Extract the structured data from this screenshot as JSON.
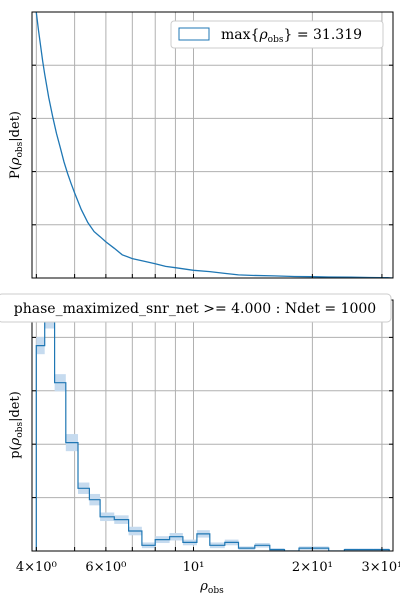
{
  "chart_data": [
    {
      "type": "line",
      "panel": "top",
      "ylabel": "P(ρobs|det)",
      "xscale": "log",
      "xlim": [
        3.9,
        32
      ],
      "grid": true,
      "legend": {
        "placement": "top-right",
        "label": "max{ρobs} = 31.319"
      },
      "x_ticks_major": [
        4,
        10,
        20,
        30
      ],
      "x_ticks_minor": [
        5,
        6,
        7,
        8,
        9
      ],
      "series": [
        {
          "color": "#1f77b4",
          "x": [
            4.0,
            4.05,
            4.1,
            4.15,
            4.2,
            4.3,
            4.4,
            4.5,
            4.6,
            4.7,
            4.8,
            4.9,
            5.0,
            5.2,
            5.4,
            5.6,
            5.8,
            6.0,
            6.3,
            6.6,
            7.0,
            7.5,
            8.0,
            8.5,
            9.0,
            10.0,
            11.0,
            12.0,
            13.0,
            14.0,
            16.0,
            18.0,
            20.0,
            22.0,
            25.0,
            28.0,
            31.0,
            32.0
          ],
          "y": [
            1.03,
            0.96,
            0.9,
            0.84,
            0.79,
            0.7,
            0.625,
            0.56,
            0.505,
            0.45,
            0.405,
            0.365,
            0.33,
            0.265,
            0.215,
            0.18,
            0.16,
            0.14,
            0.115,
            0.09,
            0.075,
            0.065,
            0.055,
            0.045,
            0.04,
            0.03,
            0.025,
            0.018,
            0.012,
            0.01,
            0.008,
            0.006,
            0.005,
            0.004,
            0.003,
            0.002,
            0.001,
            0.0
          ]
        }
      ]
    },
    {
      "type": "bar",
      "panel": "bottom",
      "title": "phase_maximized_snr_net >= 4.000 : Ndet = 1000",
      "xlabel": "ρobs",
      "ylabel": "p(ρobs|det)",
      "xscale": "log",
      "xlim": [
        3.9,
        32
      ],
      "grid": true,
      "x_ticks_major": [
        4,
        6,
        10,
        20,
        30
      ],
      "x_tick_labels": [
        "4×10⁰",
        "6×10⁰",
        "10¹",
        "2×10¹",
        "3×10¹"
      ],
      "x_ticks_minor": [
        5,
        7,
        8,
        9
      ],
      "bin_edges": [
        4.0,
        4.2,
        4.45,
        4.75,
        5.1,
        5.45,
        5.8,
        6.3,
        6.85,
        7.4,
        8.0,
        8.7,
        9.4,
        10.2,
        11.0,
        12.0,
        13.0,
        14.3,
        15.6,
        17.0,
        18.5,
        20.2,
        22.0,
        24.1,
        26.2,
        28.6,
        31.3
      ],
      "values": [
        0.72,
        0.82,
        0.59,
        0.38,
        0.22,
        0.18,
        0.12,
        0.11,
        0.07,
        0.02,
        0.04,
        0.05,
        0.03,
        0.06,
        0.02,
        0.03,
        0.01,
        0.02,
        0.005,
        0.0,
        0.01,
        0.01,
        0.0,
        0.005,
        0.005,
        0.005
      ],
      "errors": [
        0.03,
        0.04,
        0.03,
        0.03,
        0.02,
        0.02,
        0.015,
        0.015,
        0.015,
        0.01,
        0.012,
        0.013,
        0.01,
        0.013,
        0.01,
        0.01,
        0.006,
        0.008,
        0.005,
        0.0,
        0.006,
        0.006,
        0.0,
        0.004,
        0.004,
        0.004
      ],
      "ylim": [
        0,
        0.88
      ]
    }
  ],
  "colors": {
    "line": "#1f77b4",
    "band": "#c6dbef",
    "grid": "#b0b0b0"
  }
}
